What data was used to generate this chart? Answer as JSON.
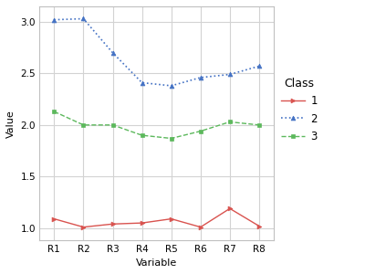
{
  "x_labels": [
    "R1",
    "R2",
    "R3",
    "R4",
    "R5",
    "R6",
    "R7",
    "R8"
  ],
  "class1": [
    1.09,
    1.01,
    1.04,
    1.05,
    1.09,
    1.01,
    1.19,
    1.02
  ],
  "class2": [
    3.02,
    3.03,
    2.7,
    2.41,
    2.38,
    2.46,
    2.49,
    2.57
  ],
  "class3": [
    2.13,
    2.0,
    2.0,
    1.9,
    1.87,
    1.94,
    2.03,
    2.0
  ],
  "color1": "#d9534f",
  "color2": "#4472c4",
  "color3": "#5cb85c",
  "xlabel": "Variable",
  "ylabel": "Value",
  "legend_title": "Class",
  "legend_labels": [
    "1",
    "2",
    "3"
  ],
  "ylim": [
    0.88,
    3.15
  ],
  "yticks": [
    1.0,
    1.5,
    2.0,
    2.5,
    3.0
  ],
  "plot_bg": "#ffffff",
  "fig_bg": "#ffffff",
  "grid_color": "#d3d3d3",
  "spine_color": "#c0c0c0",
  "axis_fontsize": 8,
  "tick_fontsize": 7.5,
  "legend_fontsize": 8.5
}
